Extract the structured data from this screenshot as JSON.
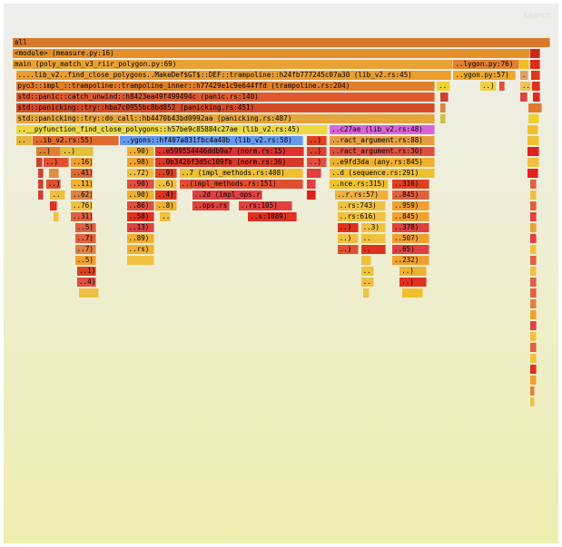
{
  "search_label": "Search",
  "chart_data": {
    "type": "flamegraph",
    "frames": [
      {
        "d": 0,
        "x": 0,
        "w": 1,
        "label": "all",
        "c": "#d9782d"
      },
      {
        "d": 1,
        "x": 0,
        "w": 0.962,
        "label": "<module> (measure.py:16)",
        "c": "#e4902a"
      },
      {
        "d": 1,
        "x": 0.962,
        "w": 0.02,
        "label": "",
        "c": "#cc2a1a"
      },
      {
        "d": 2,
        "x": 0,
        "w": 0.82,
        "label": "main (poly_match_v3_riir_polygon.py:69)",
        "c": "#e8a235"
      },
      {
        "d": 2,
        "x": 0.82,
        "w": 0.122,
        "label": "..lygon.py:76)",
        "c": "#e08030"
      },
      {
        "d": 2,
        "x": 0.942,
        "w": 0.02,
        "label": "",
        "c": "#f0c020"
      },
      {
        "d": 2,
        "x": 0.962,
        "w": 0.02,
        "label": "",
        "c": "#dd2a1a"
      },
      {
        "d": 3,
        "x": 0.006,
        "w": 0.81,
        "label": "....lib_v2..find_close_polygons..MakeDef$GT$::DEF::trampoline::h24fb777245c07a30 (lib_v2.rs:45)",
        "c": "#eb9d2e"
      },
      {
        "d": 3,
        "x": 0.82,
        "w": 0.116,
        "label": "..ygon.py:57)",
        "c": "#f0a828"
      },
      {
        "d": 3,
        "x": 0.944,
        "w": 0.016,
        "label": "..",
        "c": "#e0a060"
      },
      {
        "d": 3,
        "x": 0.964,
        "w": 0.018,
        "label": "",
        "c": "#dd3a1a"
      },
      {
        "d": 4,
        "x": 0.006,
        "w": 0.78,
        "label": "pyo3::impl_::trampoline::trampoline_inner::h77429e1c9e644ffd (trampoline.rs:204)",
        "c": "#e07e2a"
      },
      {
        "d": 4,
        "x": 0.789,
        "w": 0.025,
        "label": "..",
        "c": "#f0d030"
      },
      {
        "d": 4,
        "x": 0.87,
        "w": 0.03,
        "label": "..)",
        "c": "#f0d040"
      },
      {
        "d": 4,
        "x": 0.905,
        "w": 0.01,
        "label": "",
        "c": "#e05030"
      },
      {
        "d": 4,
        "x": 0.944,
        "w": 0.02,
        "label": "..",
        "c": "#f0c060"
      },
      {
        "d": 4,
        "x": 0.966,
        "w": 0.016,
        "label": "",
        "c": "#dd3020"
      },
      {
        "d": 5,
        "x": 0.006,
        "w": 0.78,
        "label": "std::panic::catch_unwind::h8423ea49f499494c (panic.rs:140)",
        "c": "#dd5a30"
      },
      {
        "d": 5,
        "x": 0.796,
        "w": 0.015,
        "label": "",
        "c": "#d04030"
      },
      {
        "d": 5,
        "x": 0.944,
        "w": 0.014,
        "label": "",
        "c": "#e04040"
      },
      {
        "d": 5,
        "x": 0.968,
        "w": 0.014,
        "label": "",
        "c": "#dd2a1a"
      },
      {
        "d": 6,
        "x": 0.006,
        "w": 0.78,
        "label": "std::panicking::try::hba7c0955bc8bd852 (panicking.rs:451)",
        "c": "#d44a26"
      },
      {
        "d": 6,
        "x": 0.796,
        "w": 0.01,
        "label": "",
        "c": "#e08040"
      },
      {
        "d": 6,
        "x": 0.96,
        "w": 0.025,
        "label": "",
        "c": "#e07a30"
      },
      {
        "d": 7,
        "x": 0.006,
        "w": 0.78,
        "label": "std::panicking::try::do_call::hb4470b43bd0992aa (panicking.rs:487)",
        "c": "#e4a53c"
      },
      {
        "d": 7,
        "x": 0.796,
        "w": 0.01,
        "label": "",
        "c": "#d0c040"
      },
      {
        "d": 7,
        "x": 0.96,
        "w": 0.02,
        "label": "",
        "c": "#f0d030"
      },
      {
        "d": 8,
        "x": 0.006,
        "w": 0.58,
        "label": "..__pyfunction_find_close_polygons::h57be9c85884c27ae (lib_v2.rs:45)",
        "c": "#ecd844"
      },
      {
        "d": 8,
        "x": 0.59,
        "w": 0.195,
        "label": "..c27ae (lib_v2.rs:48)",
        "c": "#d865d8"
      },
      {
        "d": 8,
        "x": 0.958,
        "w": 0.02,
        "label": "",
        "c": "#f0c030"
      },
      {
        "d": 9,
        "x": 0.006,
        "w": 0.032,
        "label": "..",
        "c": "#e4b83a"
      },
      {
        "d": 9,
        "x": 0.038,
        "w": 0.16,
        "label": "..ib_v2.rs:55)",
        "c": "#e06a2e"
      },
      {
        "d": 9,
        "x": 0.2,
        "w": 0.34,
        "label": "..ygons::hf407a831fbc4a40b (lib_v2.rs:58)",
        "c": "#6699ee"
      },
      {
        "d": 9,
        "x": 0.548,
        "w": 0.036,
        "label": "..)",
        "c": "#e04020"
      },
      {
        "d": 9,
        "x": 0.59,
        "w": 0.195,
        "label": "..ract_argument.rs:88)",
        "c": "#e4a040"
      },
      {
        "d": 9,
        "x": 0.958,
        "w": 0.022,
        "label": "",
        "c": "#f0c030"
      },
      {
        "d": 10,
        "x": 0.044,
        "w": 0.046,
        "label": "..)",
        "c": "#e08030"
      },
      {
        "d": 10,
        "x": 0.09,
        "w": 0.06,
        "label": "..)",
        "c": "#e4c036"
      },
      {
        "d": 10,
        "x": 0.212,
        "w": 0.052,
        "label": "..90)",
        "c": "#f0b030"
      },
      {
        "d": 10,
        "x": 0.266,
        "w": 0.276,
        "label": "..e599554446ddb9a7 (norm.rs:15)",
        "c": "#e03030"
      },
      {
        "d": 10,
        "x": 0.548,
        "w": 0.036,
        "label": "..)",
        "c": "#e04030"
      },
      {
        "d": 10,
        "x": 0.59,
        "w": 0.195,
        "label": "..ract_argument.rs:30)",
        "c": "#e05040"
      },
      {
        "d": 10,
        "x": 0.958,
        "w": 0.022,
        "label": "",
        "c": "#e02020"
      },
      {
        "d": 11,
        "x": 0.044,
        "w": 0.012,
        "label": "",
        "c": "#d04030"
      },
      {
        "d": 11,
        "x": 0.058,
        "w": 0.046,
        "label": "..)",
        "c": "#e05030"
      },
      {
        "d": 11,
        "x": 0.108,
        "w": 0.04,
        "label": "..16)",
        "c": "#f0a030"
      },
      {
        "d": 11,
        "x": 0.212,
        "w": 0.052,
        "label": "..98)",
        "c": "#f0a030"
      },
      {
        "d": 11,
        "x": 0.266,
        "w": 0.276,
        "label": "..0b3426f3d5c109fb (norm.rs:36)",
        "c": "#d83828"
      },
      {
        "d": 11,
        "x": 0.548,
        "w": 0.036,
        "label": "..)",
        "c": "#e05040"
      },
      {
        "d": 11,
        "x": 0.59,
        "w": 0.195,
        "label": "..e9fd3da (any.rs:845)",
        "c": "#f0b030"
      },
      {
        "d": 11,
        "x": 0.958,
        "w": 0.022,
        "label": "",
        "c": "#f0c040"
      },
      {
        "d": 12,
        "x": 0.048,
        "w": 0.01,
        "label": "",
        "c": "#d04030"
      },
      {
        "d": 12,
        "x": 0.068,
        "w": 0.018,
        "label": "",
        "c": "#e09040"
      },
      {
        "d": 12,
        "x": 0.108,
        "w": 0.04,
        "label": "..41)",
        "c": "#e06a30"
      },
      {
        "d": 12,
        "x": 0.212,
        "w": 0.052,
        "label": "..72)",
        "c": "#f0c040"
      },
      {
        "d": 12,
        "x": 0.266,
        "w": 0.04,
        "label": "..9)",
        "c": "#e04020"
      },
      {
        "d": 12,
        "x": 0.31,
        "w": 0.23,
        "label": "..7 (impl_methods.rs:408)",
        "c": "#f0c030"
      },
      {
        "d": 12,
        "x": 0.548,
        "w": 0.026,
        "label": "",
        "c": "#e04040"
      },
      {
        "d": 12,
        "x": 0.59,
        "w": 0.195,
        "label": "..d (sequence.rs:291)",
        "c": "#f0c030"
      },
      {
        "d": 12,
        "x": 0.958,
        "w": 0.02,
        "label": "",
        "c": "#e02020"
      },
      {
        "d": 13,
        "x": 0.048,
        "w": 0.01,
        "label": "",
        "c": "#d04030"
      },
      {
        "d": 13,
        "x": 0.062,
        "w": 0.028,
        "label": "..)",
        "c": "#e05030"
      },
      {
        "d": 13,
        "x": 0.108,
        "w": 0.04,
        "label": "..11)",
        "c": "#f0b030"
      },
      {
        "d": 13,
        "x": 0.212,
        "w": 0.052,
        "label": "..90)",
        "c": "#e05040"
      },
      {
        "d": 13,
        "x": 0.266,
        "w": 0.04,
        "label": "..6)",
        "c": "#f0c040"
      },
      {
        "d": 13,
        "x": 0.31,
        "w": 0.23,
        "label": "..(impl_methods.rs:151)",
        "c": "#e05030"
      },
      {
        "d": 13,
        "x": 0.548,
        "w": 0.016,
        "label": "",
        "c": "#e04040"
      },
      {
        "d": 13,
        "x": 0.59,
        "w": 0.11,
        "label": "..nce.rs:315)",
        "c": "#f0c030"
      },
      {
        "d": 13,
        "x": 0.706,
        "w": 0.07,
        "label": "..316)",
        "c": "#e04020"
      },
      {
        "d": 13,
        "x": 0.962,
        "w": 0.012,
        "label": "",
        "c": "#e06040"
      },
      {
        "d": 14,
        "x": 0.048,
        "w": 0.01,
        "label": "",
        "c": "#d04030"
      },
      {
        "d": 14,
        "x": 0.07,
        "w": 0.028,
        "label": "..",
        "c": "#f0c040"
      },
      {
        "d": 14,
        "x": 0.108,
        "w": 0.04,
        "label": "..62)",
        "c": "#e08040"
      },
      {
        "d": 14,
        "x": 0.212,
        "w": 0.052,
        "label": "..90)",
        "c": "#f0b030"
      },
      {
        "d": 14,
        "x": 0.266,
        "w": 0.04,
        "label": "..4)",
        "c": "#e03020"
      },
      {
        "d": 14,
        "x": 0.334,
        "w": 0.13,
        "label": "..2d (impl_ops.rs:77)",
        "c": "#e04040"
      },
      {
        "d": 14,
        "x": 0.548,
        "w": 0.016,
        "label": "",
        "c": "#e02020"
      },
      {
        "d": 14,
        "x": 0.6,
        "w": 0.1,
        "label": "..r.rs:57)",
        "c": "#f0b040"
      },
      {
        "d": 14,
        "x": 0.706,
        "w": 0.07,
        "label": "..845)",
        "c": "#e06040"
      },
      {
        "d": 14,
        "x": 0.962,
        "w": 0.012,
        "label": "",
        "c": "#f0c040"
      },
      {
        "d": 15,
        "x": 0.07,
        "w": 0.012,
        "label": "",
        "c": "#e03020"
      },
      {
        "d": 15,
        "x": 0.108,
        "w": 0.04,
        "label": "..76)",
        "c": "#f0c040"
      },
      {
        "d": 15,
        "x": 0.212,
        "w": 0.052,
        "label": "..86)",
        "c": "#e05040"
      },
      {
        "d": 15,
        "x": 0.266,
        "w": 0.04,
        "label": "..8)",
        "c": "#f0b030"
      },
      {
        "d": 15,
        "x": 0.334,
        "w": 0.07,
        "label": "..ops.rs)",
        "c": "#e04040"
      },
      {
        "d": 15,
        "x": 0.42,
        "w": 0.1,
        "label": "..rs:105)",
        "c": "#e04040"
      },
      {
        "d": 15,
        "x": 0.604,
        "w": 0.09,
        "label": "..rs:743)",
        "c": "#f0c040"
      },
      {
        "d": 15,
        "x": 0.706,
        "w": 0.07,
        "label": "..959)",
        "c": "#f0a030"
      },
      {
        "d": 15,
        "x": 0.962,
        "w": 0.012,
        "label": "",
        "c": "#e06040"
      },
      {
        "d": 16,
        "x": 0.076,
        "w": 0.01,
        "label": "",
        "c": "#f0c040"
      },
      {
        "d": 16,
        "x": 0.108,
        "w": 0.04,
        "label": "..31)",
        "c": "#e06040"
      },
      {
        "d": 16,
        "x": 0.212,
        "w": 0.052,
        "label": "..58)",
        "c": "#e03020"
      },
      {
        "d": 16,
        "x": 0.274,
        "w": 0.02,
        "label": "..",
        "c": "#f0c040"
      },
      {
        "d": 16,
        "x": 0.438,
        "w": 0.09,
        "label": "..s:1089)",
        "c": "#e03020"
      },
      {
        "d": 16,
        "x": 0.604,
        "w": 0.09,
        "label": "..rs:616)",
        "c": "#f0c040"
      },
      {
        "d": 16,
        "x": 0.706,
        "w": 0.07,
        "label": "..845)",
        "c": "#f0a030"
      },
      {
        "d": 16,
        "x": 0.962,
        "w": 0.012,
        "label": "",
        "c": "#e04040"
      },
      {
        "d": 17,
        "x": 0.116,
        "w": 0.04,
        "label": "..5)",
        "c": "#e06040"
      },
      {
        "d": 17,
        "x": 0.212,
        "w": 0.052,
        "label": "..13)",
        "c": "#e04040"
      },
      {
        "d": 17,
        "x": 0.604,
        "w": 0.04,
        "label": "..)",
        "c": "#e03020"
      },
      {
        "d": 17,
        "x": 0.648,
        "w": 0.046,
        "label": "..3)",
        "c": "#f0c040"
      },
      {
        "d": 17,
        "x": 0.706,
        "w": 0.07,
        "label": "..378)",
        "c": "#e04040"
      },
      {
        "d": 17,
        "x": 0.962,
        "w": 0.012,
        "label": "",
        "c": "#f0a030"
      },
      {
        "d": 18,
        "x": 0.116,
        "w": 0.04,
        "label": "..7)",
        "c": "#e06040"
      },
      {
        "d": 18,
        "x": 0.212,
        "w": 0.052,
        "label": "..89)",
        "c": "#f0b030"
      },
      {
        "d": 18,
        "x": 0.604,
        "w": 0.04,
        "label": "..)",
        "c": "#f0c040"
      },
      {
        "d": 18,
        "x": 0.648,
        "w": 0.046,
        "label": "..",
        "c": "#f0c040"
      },
      {
        "d": 18,
        "x": 0.706,
        "w": 0.07,
        "label": "..507)",
        "c": "#f0a030"
      },
      {
        "d": 18,
        "x": 0.962,
        "w": 0.012,
        "label": "",
        "c": "#e04040"
      },
      {
        "d": 19,
        "x": 0.116,
        "w": 0.04,
        "label": "..7)",
        "c": "#e08040"
      },
      {
        "d": 19,
        "x": 0.212,
        "w": 0.052,
        "label": "..rs)",
        "c": "#f0b030"
      },
      {
        "d": 19,
        "x": 0.604,
        "w": 0.04,
        "label": "..)",
        "c": "#e05030"
      },
      {
        "d": 19,
        "x": 0.648,
        "w": 0.046,
        "label": "..",
        "c": "#e03020"
      },
      {
        "d": 19,
        "x": 0.706,
        "w": 0.07,
        "label": "..65)",
        "c": "#e04040"
      },
      {
        "d": 19,
        "x": 0.962,
        "w": 0.012,
        "label": "",
        "c": "#f0c040"
      },
      {
        "d": 20,
        "x": 0.116,
        "w": 0.04,
        "label": "..5)",
        "c": "#f0a030"
      },
      {
        "d": 20,
        "x": 0.212,
        "w": 0.052,
        "label": "",
        "c": "#f0c040"
      },
      {
        "d": 20,
        "x": 0.648,
        "w": 0.02,
        "label": "",
        "c": "#f0c040"
      },
      {
        "d": 20,
        "x": 0.706,
        "w": 0.07,
        "label": "..232)",
        "c": "#f0a030"
      },
      {
        "d": 20,
        "x": 0.962,
        "w": 0.012,
        "label": "",
        "c": "#e06040"
      },
      {
        "d": 21,
        "x": 0.12,
        "w": 0.036,
        "label": "..1)",
        "c": "#e04020"
      },
      {
        "d": 21,
        "x": 0.648,
        "w": 0.024,
        "label": "..",
        "c": "#f0c040"
      },
      {
        "d": 21,
        "x": 0.72,
        "w": 0.05,
        "label": "..)",
        "c": "#f0b030"
      },
      {
        "d": 21,
        "x": 0.962,
        "w": 0.012,
        "label": "",
        "c": "#f0c040"
      },
      {
        "d": 22,
        "x": 0.12,
        "w": 0.036,
        "label": "..4)",
        "c": "#e05040"
      },
      {
        "d": 22,
        "x": 0.648,
        "w": 0.024,
        "label": "..",
        "c": "#f0c040"
      },
      {
        "d": 22,
        "x": 0.72,
        "w": 0.05,
        "label": "..)",
        "c": "#e03020"
      },
      {
        "d": 22,
        "x": 0.962,
        "w": 0.012,
        "label": "",
        "c": "#e06040"
      },
      {
        "d": 23,
        "x": 0.124,
        "w": 0.036,
        "label": "",
        "c": "#f0c040"
      },
      {
        "d": 23,
        "x": 0.652,
        "w": 0.012,
        "label": "",
        "c": "#f0c040"
      },
      {
        "d": 23,
        "x": 0.724,
        "w": 0.04,
        "label": "",
        "c": "#f0c030"
      },
      {
        "d": 23,
        "x": 0.962,
        "w": 0.012,
        "label": "",
        "c": "#e06040"
      },
      {
        "d": 24,
        "x": 0.962,
        "w": 0.012,
        "label": "",
        "c": "#e08040"
      },
      {
        "d": 25,
        "x": 0.962,
        "w": 0.012,
        "label": "",
        "c": "#f0a030"
      },
      {
        "d": 26,
        "x": 0.962,
        "w": 0.012,
        "label": "",
        "c": "#e04040"
      },
      {
        "d": 27,
        "x": 0.962,
        "w": 0.012,
        "label": "",
        "c": "#f0c040"
      },
      {
        "d": 28,
        "x": 0.962,
        "w": 0.012,
        "label": "",
        "c": "#e06040"
      },
      {
        "d": 29,
        "x": 0.962,
        "w": 0.012,
        "label": "",
        "c": "#f0c040"
      },
      {
        "d": 30,
        "x": 0.962,
        "w": 0.012,
        "label": "",
        "c": "#e03020"
      },
      {
        "d": 31,
        "x": 0.962,
        "w": 0.012,
        "label": "",
        "c": "#f0a030"
      },
      {
        "d": 32,
        "x": 0.962,
        "w": 0.01,
        "label": "",
        "c": "#e08040"
      },
      {
        "d": 33,
        "x": 0.962,
        "w": 0.01,
        "label": "",
        "c": "#f0c040"
      }
    ]
  }
}
